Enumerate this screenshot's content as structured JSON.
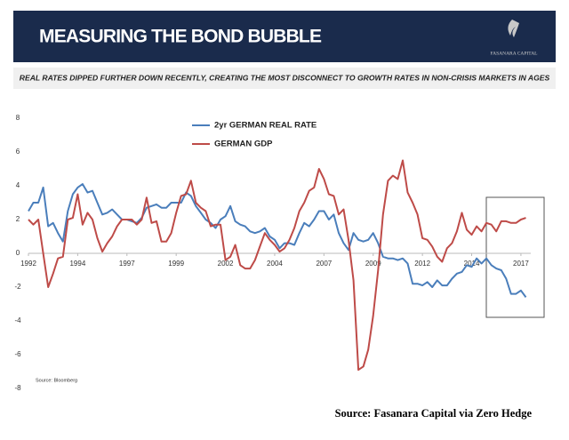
{
  "header": {
    "title": "MEASURING THE BOND BUBBLE",
    "logo": "FASANARA CAPITAL",
    "subtitle": "REAL RATES DIPPED FURTHER DOWN RECENTLY, CREATING THE MOST DISCONNECT TO GROWTH RATES IN NON-CRISIS MARKETS IN AGES"
  },
  "footer": {
    "source": "Source: Fasanara Capital via Zero Hedge"
  },
  "chart_data": {
    "type": "line",
    "note": "Source: Bloomberg",
    "x": [
      1992,
      1992.25,
      1992.5,
      1992.75,
      1993,
      1993.25,
      1993.5,
      1993.75,
      1994,
      1994.25,
      1994.5,
      1994.75,
      1995,
      1995.25,
      1995.5,
      1995.75,
      1996,
      1996.25,
      1996.5,
      1996.75,
      1997,
      1997.25,
      1997.5,
      1997.75,
      1998,
      1998.25,
      1998.5,
      1998.75,
      1999,
      1999.25,
      1999.5,
      1999.75,
      2000,
      2000.25,
      2000.5,
      2000.75,
      2001,
      2001.25,
      2001.5,
      2001.75,
      2002,
      2002.25,
      2002.5,
      2002.75,
      2003,
      2003.25,
      2003.5,
      2003.75,
      2004,
      2004.25,
      2004.5,
      2004.75,
      2005,
      2005.25,
      2005.5,
      2005.75,
      2006,
      2006.25,
      2006.5,
      2006.75,
      2007,
      2007.25,
      2007.5,
      2007.75,
      2008,
      2008.25,
      2008.5,
      2008.75,
      2009,
      2009.25,
      2009.5,
      2009.75,
      2010,
      2010.25,
      2010.5,
      2010.75,
      2011,
      2011.25,
      2011.5,
      2011.75,
      2012,
      2012.25,
      2012.5,
      2012.75,
      2013,
      2013.25,
      2013.5,
      2013.75,
      2014,
      2014.25,
      2014.5,
      2014.75,
      2015,
      2015.25,
      2015.5,
      2015.75,
      2016,
      2016.25,
      2016.5,
      2016.75,
      2017,
      2017.25
    ],
    "series": [
      {
        "name": "2yr GERMAN REAL RATE",
        "color": "#4a7ebb",
        "values": [
          2.5,
          3.0,
          3.0,
          3.9,
          1.6,
          1.8,
          1.2,
          0.7,
          2.5,
          3.5,
          3.9,
          4.1,
          3.6,
          3.7,
          3.0,
          2.3,
          2.4,
          2.6,
          2.3,
          2.0,
          2.0,
          1.9,
          1.8,
          2.1,
          2.7,
          2.8,
          2.9,
          2.7,
          2.7,
          3.0,
          3.0,
          3.0,
          3.6,
          3.4,
          2.8,
          2.4,
          2.0,
          1.8,
          1.5,
          2.0,
          2.2,
          2.8,
          1.9,
          1.7,
          1.6,
          1.3,
          1.2,
          1.3,
          1.5,
          1.0,
          0.8,
          0.3,
          0.6,
          0.6,
          0.5,
          1.2,
          1.8,
          1.6,
          2.0,
          2.5,
          2.5,
          2.0,
          2.3,
          1.2,
          0.6,
          0.2,
          1.2,
          0.8,
          0.7,
          0.8,
          1.2,
          0.6,
          -0.2,
          -0.3,
          -0.3,
          -0.4,
          -0.3,
          -0.6,
          -1.8,
          -1.8,
          -1.9,
          -1.7,
          -2.0,
          -1.6,
          -1.9,
          -1.9,
          -1.5,
          -1.2,
          -1.1,
          -0.7,
          -0.8,
          -0.3,
          -0.6,
          -0.3,
          -0.7,
          -0.9,
          -1.0,
          -1.5,
          -2.4,
          -2.4,
          -2.2,
          -2.6
        ]
      },
      {
        "name": "GERMAN GDP",
        "color": "#be4b48",
        "values": [
          2.0,
          1.7,
          2.0,
          0.0,
          -2.0,
          -1.2,
          -0.3,
          -0.2,
          2.0,
          2.1,
          3.5,
          1.7,
          2.4,
          2.0,
          0.9,
          0.1,
          0.6,
          1.0,
          1.6,
          2.0,
          2.0,
          2.0,
          1.7,
          2.0,
          3.3,
          1.8,
          1.9,
          0.7,
          0.7,
          1.2,
          2.4,
          3.4,
          3.5,
          4.3,
          3.0,
          2.7,
          2.5,
          1.6,
          1.7,
          1.7,
          -0.4,
          -0.2,
          0.5,
          -0.7,
          -0.9,
          -0.9,
          -0.4,
          0.4,
          1.2,
          0.8,
          0.5,
          0.1,
          0.3,
          0.8,
          1.5,
          2.5,
          3.0,
          3.7,
          3.9,
          5.0,
          4.4,
          3.5,
          3.4,
          2.3,
          2.6,
          0.8,
          -1.6,
          -6.9,
          -6.7,
          -5.7,
          -3.7,
          -1.0,
          2.3,
          4.3,
          4.6,
          4.4,
          5.5,
          3.6,
          3.0,
          2.3,
          0.9,
          0.8,
          0.4,
          -0.2,
          -0.5,
          0.3,
          0.6,
          1.3,
          2.4,
          1.4,
          1.1,
          1.6,
          1.3,
          1.8,
          1.7,
          1.3,
          1.9,
          1.9,
          1.8,
          1.8,
          2.0,
          2.1
        ]
      }
    ],
    "xlim": [
      1992,
      2017.5
    ],
    "xticks": [
      1992,
      {
        "value": 1994.5,
        "label": "1994"
      },
      1997,
      {
        "value": 1999.5,
        "label": "1999"
      },
      2002,
      {
        "value": 2004.5,
        "label": "2004"
      },
      2007,
      {
        "value": 2009.5,
        "label": "2009"
      },
      2012,
      {
        "value": 2014.5,
        "label": "2014"
      },
      2017
    ],
    "ylim": [
      -8,
      8
    ],
    "yticks": [
      -8,
      -6,
      -4,
      -2,
      0,
      2,
      4,
      6,
      8
    ],
    "grid": false
  }
}
